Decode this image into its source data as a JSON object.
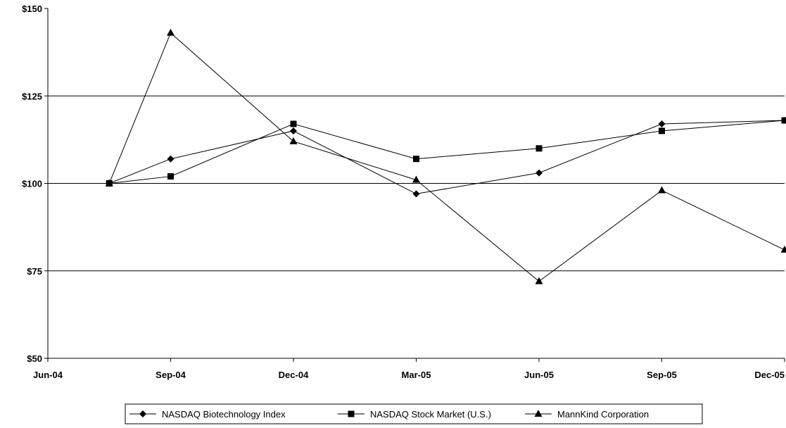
{
  "chart_data": {
    "type": "line",
    "title": "",
    "xlabel": "",
    "ylabel": "",
    "ylim": [
      50,
      150
    ],
    "yticks": [
      "$50",
      "$75",
      "$100",
      "$125",
      "$150"
    ],
    "ytick_values": [
      50,
      75,
      100,
      125,
      150
    ],
    "gridlines_y": [
      75,
      100,
      125
    ],
    "categories": [
      "Jun-04",
      "Sep-04",
      "Dec-04",
      "Mar-05",
      "Jun-05",
      "Sep-05",
      "Dec-05"
    ],
    "x_category_positions": [
      0,
      1,
      2,
      3,
      4,
      5,
      6
    ],
    "legend_position": "bottom",
    "series": [
      {
        "name": "NASDAQ Biotechnology Index",
        "marker": "diamond",
        "points": [
          {
            "x": 0.5,
            "y": 100
          },
          {
            "x": 1,
            "y": 107
          },
          {
            "x": 2,
            "y": 115
          },
          {
            "x": 3,
            "y": 97
          },
          {
            "x": 4,
            "y": 103
          },
          {
            "x": 5,
            "y": 117
          },
          {
            "x": 6,
            "y": 118
          }
        ]
      },
      {
        "name": "NASDAQ Stock Market (U.S.)",
        "marker": "square",
        "points": [
          {
            "x": 0.5,
            "y": 100
          },
          {
            "x": 1,
            "y": 102
          },
          {
            "x": 2,
            "y": 117
          },
          {
            "x": 3,
            "y": 107
          },
          {
            "x": 4,
            "y": 110
          },
          {
            "x": 5,
            "y": 115
          },
          {
            "x": 6,
            "y": 118
          }
        ]
      },
      {
        "name": "MannKind Corporation",
        "marker": "triangle",
        "points": [
          {
            "x": 0.5,
            "y": 100
          },
          {
            "x": 1,
            "y": 143
          },
          {
            "x": 2,
            "y": 112
          },
          {
            "x": 3,
            "y": 101
          },
          {
            "x": 4,
            "y": 72
          },
          {
            "x": 5,
            "y": 98
          },
          {
            "x": 6,
            "y": 81
          }
        ]
      }
    ]
  }
}
